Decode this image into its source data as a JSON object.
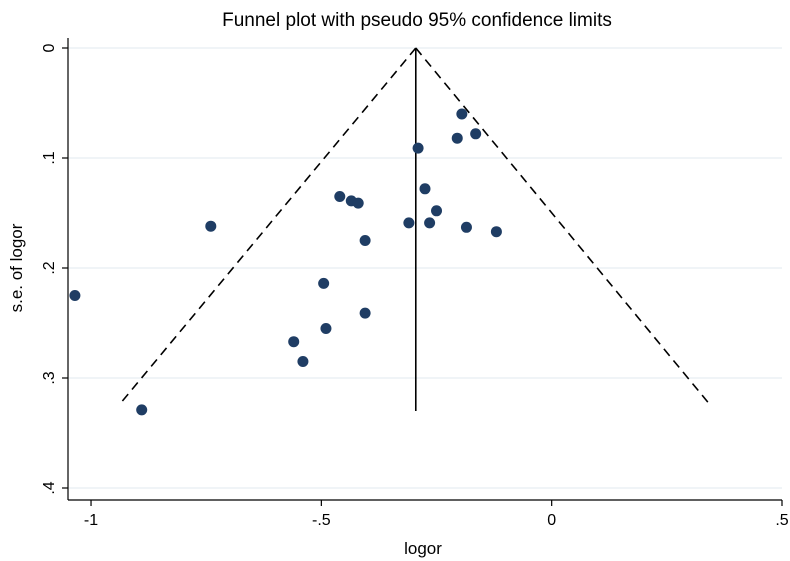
{
  "chart_data": {
    "type": "scatter",
    "title": "Funnel plot with pseudo 95% confidence limits",
    "xlabel": "logor",
    "ylabel": "s.e. of logor",
    "xlim": [
      -1.05,
      0.5
    ],
    "ylim": [
      0,
      0.4
    ],
    "y_inverted": true,
    "grid": true,
    "xticks": [
      -1,
      -0.5,
      0,
      0.5
    ],
    "xtick_labels": [
      "-1",
      "-.5",
      "0",
      ".5"
    ],
    "yticks": [
      0,
      0.1,
      0.2,
      0.3,
      0.4
    ],
    "ytick_labels": [
      "0",
      ".1",
      ".2",
      ".3",
      ".4"
    ],
    "pooled_estimate": -0.295,
    "se_max": 0.33,
    "confidence_limits": {
      "apex": [
        -0.295,
        0
      ],
      "lower_left": [
        -0.94,
        0.325
      ],
      "lower_right": [
        0.345,
        0.325
      ]
    },
    "points": [
      {
        "x": -0.195,
        "y": 0.06
      },
      {
        "x": -0.165,
        "y": 0.078
      },
      {
        "x": -0.205,
        "y": 0.082
      },
      {
        "x": -0.29,
        "y": 0.091
      },
      {
        "x": -0.275,
        "y": 0.128
      },
      {
        "x": -0.46,
        "y": 0.135
      },
      {
        "x": -0.435,
        "y": 0.139
      },
      {
        "x": -0.42,
        "y": 0.141
      },
      {
        "x": -0.25,
        "y": 0.148
      },
      {
        "x": -0.31,
        "y": 0.159
      },
      {
        "x": -0.265,
        "y": 0.159
      },
      {
        "x": -0.74,
        "y": 0.162
      },
      {
        "x": -0.185,
        "y": 0.163
      },
      {
        "x": -0.12,
        "y": 0.167
      },
      {
        "x": -0.405,
        "y": 0.175
      },
      {
        "x": -1.035,
        "y": 0.225
      },
      {
        "x": -0.495,
        "y": 0.214
      },
      {
        "x": -0.405,
        "y": 0.241
      },
      {
        "x": -0.49,
        "y": 0.255
      },
      {
        "x": -0.56,
        "y": 0.267
      },
      {
        "x": -0.54,
        "y": 0.285
      },
      {
        "x": -0.89,
        "y": 0.329
      }
    ],
    "colors": {
      "marker": "#1f3d64",
      "grid": "#e6eef2",
      "axis": "#000000"
    }
  }
}
